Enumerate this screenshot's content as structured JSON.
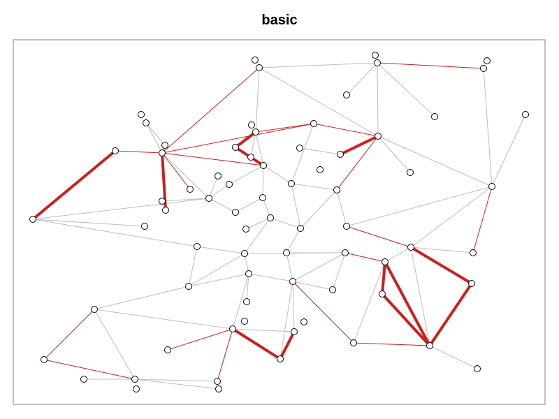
{
  "title": "basic",
  "colors": {
    "background": "#ffffff",
    "frame": "#808080",
    "light_edge": "#bdbdbd",
    "red_edge": "#cc1f1f",
    "node_fill": "#ffffff",
    "node_stroke": "#000000"
  }
}
